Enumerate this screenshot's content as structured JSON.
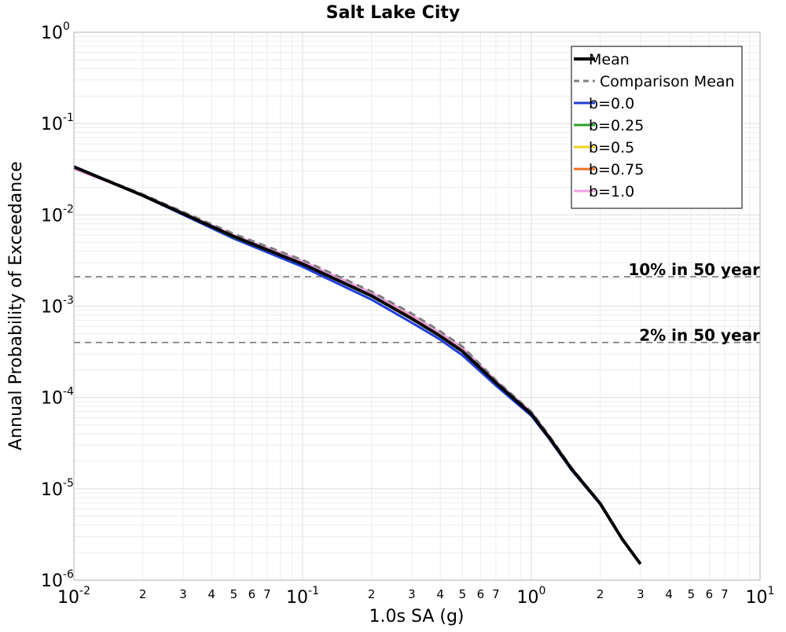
{
  "chart_data": {
    "type": "line",
    "title": "Salt Lake City",
    "xlabel": "1.0s SA (g)",
    "ylabel": "Annual Probability of Exceedance",
    "x_scale": "log",
    "y_scale": "log",
    "xlim": [
      0.01,
      10
    ],
    "ylim": [
      1e-06,
      1
    ],
    "grid": true,
    "legend_position": "top-right",
    "x_major_ticks": [
      {
        "base": "10",
        "exp": "-2",
        "value": 0.01
      },
      {
        "base": "10",
        "exp": "-1",
        "value": 0.1
      },
      {
        "base": "10",
        "exp": "0",
        "value": 1
      },
      {
        "base": "10",
        "exp": "1",
        "value": 10
      }
    ],
    "x_minor_labels": [
      "2",
      "3",
      "4",
      "5",
      "6",
      "7"
    ],
    "y_major_ticks": [
      {
        "base": "10",
        "exp": "0",
        "value": 1
      },
      {
        "base": "10",
        "exp": "-1",
        "value": 0.1
      },
      {
        "base": "10",
        "exp": "-2",
        "value": 0.01
      },
      {
        "base": "10",
        "exp": "-3",
        "value": 0.001
      },
      {
        "base": "10",
        "exp": "-4",
        "value": 0.0001
      },
      {
        "base": "10",
        "exp": "-5",
        "value": 1e-05
      },
      {
        "base": "10",
        "exp": "-6",
        "value": 1e-06
      }
    ],
    "reference_lines": [
      {
        "label": "10% in 50 year",
        "y": 0.0021
      },
      {
        "label": "2% in 50 year",
        "y": 0.0004
      }
    ],
    "series": [
      {
        "name": "b=0.0",
        "color": "#1f3fd8",
        "style": "solid",
        "x": [
          0.01,
          0.02,
          0.05,
          0.1,
          0.2,
          0.3,
          0.4,
          0.5,
          0.7,
          1.0,
          1.2,
          1.5,
          2.0,
          2.5,
          3.0
        ],
        "y": [
          0.034,
          0.0162,
          0.0055,
          0.0027,
          0.00118,
          0.00066,
          0.00043,
          0.00029,
          0.000135,
          6.3e-05,
          3.5e-05,
          1.6e-05,
          6.8e-06,
          2.8e-06,
          1.5e-06
        ]
      },
      {
        "name": "b=0.25",
        "color": "#2ca02c",
        "style": "solid",
        "x": [
          0.01,
          0.02,
          0.05,
          0.1,
          0.2,
          0.3,
          0.4,
          0.5,
          0.7,
          1.0,
          1.2,
          1.5,
          2.0,
          2.5,
          3.0
        ],
        "y": [
          0.0335,
          0.0163,
          0.0057,
          0.0029,
          0.00128,
          0.00073,
          0.00047,
          0.00032,
          0.000145,
          6.6e-05,
          3.6e-05,
          1.65e-05,
          6.9e-06,
          2.8e-06,
          1.5e-06
        ]
      },
      {
        "name": "b=0.5",
        "color": "#f0d020",
        "style": "solid",
        "x": [
          0.01,
          0.02,
          0.05,
          0.1,
          0.2,
          0.3,
          0.4,
          0.5,
          0.7,
          1.0,
          1.2,
          1.5,
          2.0,
          2.5,
          3.0
        ],
        "y": [
          0.033,
          0.0164,
          0.0058,
          0.003,
          0.00133,
          0.00076,
          0.00049,
          0.00033,
          0.000148,
          6.7e-05,
          3.7e-05,
          1.66e-05,
          6.9e-06,
          2.8e-06,
          1.5e-06
        ]
      },
      {
        "name": "b=0.75",
        "color": "#f07020",
        "style": "solid",
        "x": [
          0.01,
          0.02,
          0.05,
          0.1,
          0.2,
          0.3,
          0.4,
          0.5,
          0.7,
          1.0,
          1.2,
          1.5,
          2.0,
          2.5,
          3.0
        ],
        "y": [
          0.0325,
          0.0165,
          0.0059,
          0.00305,
          0.00137,
          0.00078,
          0.0005,
          0.00034,
          0.00015,
          6.8e-05,
          3.7e-05,
          1.67e-05,
          6.9e-06,
          2.8e-06,
          1.5e-06
        ]
      },
      {
        "name": "b=1.0",
        "color": "#f0a0e0",
        "style": "solid",
        "x": [
          0.01,
          0.02,
          0.05,
          0.1,
          0.2,
          0.3,
          0.4,
          0.5,
          0.7,
          1.0,
          1.2,
          1.5,
          2.0,
          2.5,
          3.0
        ],
        "y": [
          0.032,
          0.0166,
          0.006,
          0.0031,
          0.0014,
          0.0008,
          0.00051,
          0.00035,
          0.000152,
          6.9e-05,
          3.7e-05,
          1.68e-05,
          6.9e-06,
          2.8e-06,
          1.5e-06
        ]
      },
      {
        "name": "Comparison Mean",
        "color": "#808080",
        "style": "dashed",
        "x": [
          0.01,
          0.02,
          0.05,
          0.1,
          0.2,
          0.3,
          0.4,
          0.5,
          0.7,
          1.0,
          1.2,
          1.5,
          2.0,
          2.5,
          3.0
        ],
        "y": [
          0.0335,
          0.0168,
          0.0062,
          0.0032,
          0.00145,
          0.00083,
          0.00053,
          0.00036,
          0.000155,
          7e-05,
          3.8e-05,
          1.7e-05,
          7e-06,
          2.8e-06,
          1.5e-06
        ]
      },
      {
        "name": "Mean",
        "color": "#000000",
        "style": "solid",
        "x": [
          0.01,
          0.02,
          0.05,
          0.1,
          0.2,
          0.3,
          0.4,
          0.5,
          0.7,
          1.0,
          1.2,
          1.5,
          2.0,
          2.5,
          3.0
        ],
        "y": [
          0.0335,
          0.0163,
          0.0058,
          0.0029,
          0.0013,
          0.00073,
          0.00047,
          0.00032,
          0.000145,
          6.6e-05,
          3.6e-05,
          1.65e-05,
          6.9e-06,
          2.8e-06,
          1.5e-06
        ]
      }
    ],
    "legend": [
      {
        "name": "Mean",
        "color": "#000000",
        "style": "solid"
      },
      {
        "name": "Comparison Mean",
        "color": "#808080",
        "style": "dashed"
      },
      {
        "name": "b=0.0",
        "color": "#1f3fd8",
        "style": "solid"
      },
      {
        "name": "b=0.25",
        "color": "#2ca02c",
        "style": "solid"
      },
      {
        "name": "b=0.5",
        "color": "#f0d020",
        "style": "solid"
      },
      {
        "name": "b=0.75",
        "color": "#f07020",
        "style": "solid"
      },
      {
        "name": "b=1.0",
        "color": "#f0a0e0",
        "style": "solid"
      }
    ]
  }
}
